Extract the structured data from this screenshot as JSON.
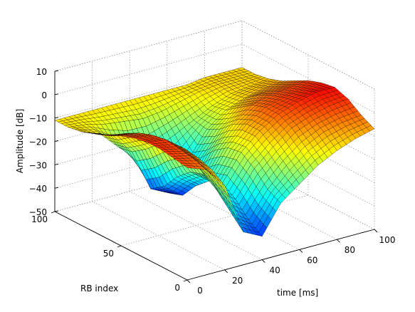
{
  "chart_data": {
    "type": "surface",
    "title": "",
    "xlabel": "time [ms]",
    "ylabel": "RB index",
    "zlabel": "Amplitude [dB]",
    "xlim": [
      0,
      100
    ],
    "ylim": [
      0,
      100
    ],
    "zlim": [
      -50,
      10
    ],
    "xticks": [
      "0",
      "20",
      "40",
      "60",
      "80",
      "100"
    ],
    "yticks": [
      "0",
      "50",
      "100"
    ],
    "zticks": [
      "10",
      "0",
      "−10",
      "−20",
      "−30",
      "−40",
      "−50"
    ],
    "grid": true,
    "colormap": "jet",
    "edgecolor": "#000000",
    "surface": {
      "time_ms": [
        0,
        10,
        20,
        30,
        40,
        50,
        60,
        70,
        80,
        90,
        100
      ],
      "rb_index": [
        0,
        10,
        20,
        30,
        40,
        50,
        60,
        70,
        80,
        90,
        100
      ],
      "amplitude_db_by_rb": [
        [
          -2,
          -5,
          -14,
          -36,
          -40,
          -28,
          -22,
          -16,
          -12,
          -9,
          -7
        ],
        [
          -1,
          -3,
          -10,
          -30,
          -36,
          -25,
          -17,
          -11,
          -7,
          -5,
          -4
        ],
        [
          0,
          -2,
          -8,
          -24,
          -30,
          -19,
          -12,
          -6,
          -3,
          -1,
          0
        ],
        [
          0,
          -1,
          -7,
          -20,
          -26,
          -15,
          -8,
          -3,
          0,
          2,
          2
        ],
        [
          -1,
          -2,
          -8,
          -22,
          -28,
          -16,
          -8,
          -3,
          -1,
          0,
          1
        ],
        [
          -3,
          -4,
          -11,
          -27,
          -33,
          -20,
          -11,
          -5,
          -3,
          -2,
          -1
        ],
        [
          -6,
          -7,
          -16,
          -34,
          -40,
          -26,
          -16,
          -9,
          -6,
          -5,
          -4
        ],
        [
          -8,
          -11,
          -20,
          -38,
          -42,
          -30,
          -19,
          -13,
          -10,
          -8,
          -7
        ],
        [
          -10,
          -13,
          -21,
          -28,
          -26,
          -22,
          -18,
          -14,
          -11,
          -10,
          -9
        ],
        [
          -11,
          -12,
          -14,
          -15,
          -16,
          -15,
          -13,
          -11,
          -10,
          -10,
          -10
        ],
        [
          -11,
          -11,
          -11,
          -11,
          -11,
          -11,
          -11,
          -11,
          -10,
          -10,
          -10
        ]
      ]
    }
  }
}
